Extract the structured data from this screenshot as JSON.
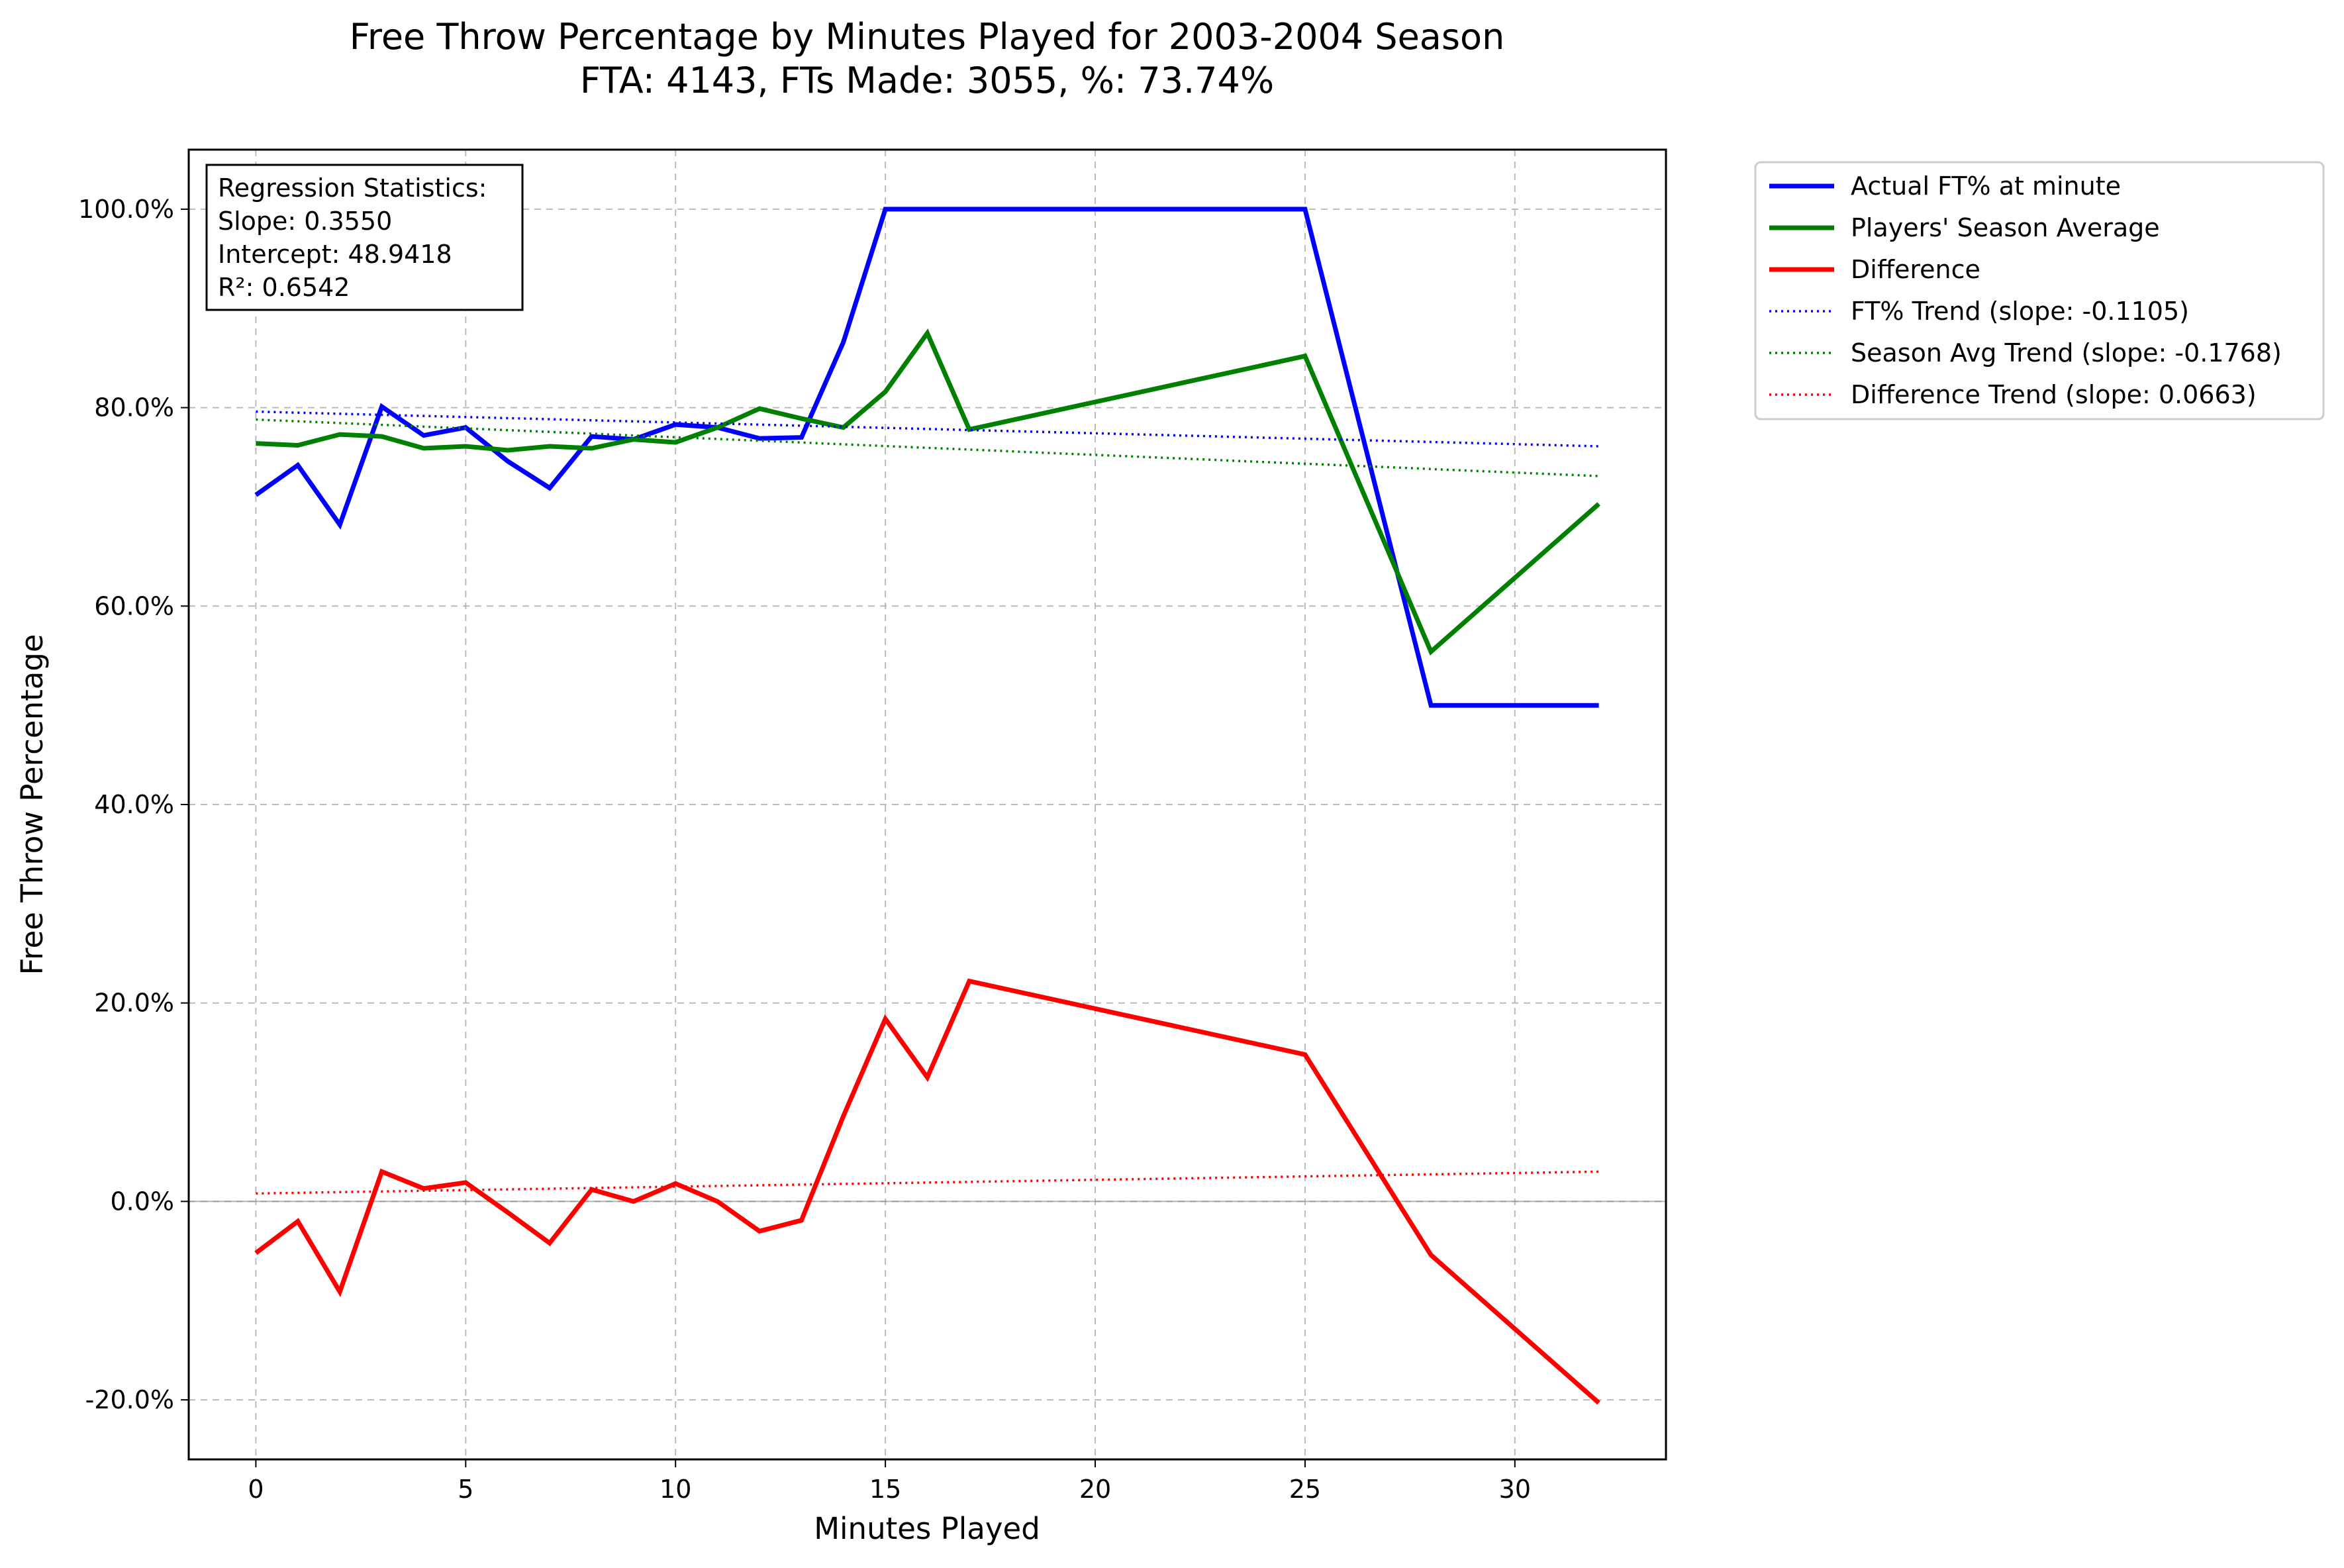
{
  "chart_data": {
    "type": "line",
    "title": "Free Throw Percentage by Minutes Played for 2003-2004 Season",
    "subtitle": "FTA: 4143, FTs Made: 3055, %: 73.74%",
    "xlabel": "Minutes Played",
    "ylabel": "Free Throw Percentage",
    "xlim": [
      -1.6,
      33.6
    ],
    "ylim": [
      -26,
      106
    ],
    "xticks": [
      0,
      5,
      10,
      15,
      20,
      25,
      30
    ],
    "xtick_labels": [
      "0",
      "5",
      "10",
      "15",
      "20",
      "25",
      "30"
    ],
    "yticks": [
      -20,
      0,
      20,
      40,
      60,
      80,
      100
    ],
    "ytick_labels": [
      "-20.0%",
      "0.0%",
      "20.0%",
      "40.0%",
      "60.0%",
      "80.0%",
      "100.0%"
    ],
    "grid": true,
    "legend_position": "outside upper right",
    "series": [
      {
        "name": "Actual FT% at minute",
        "color": "#0000ff",
        "style": "solid",
        "x": [
          0,
          1,
          2,
          3,
          4,
          5,
          6,
          7,
          8,
          9,
          10,
          11,
          12,
          13,
          14,
          15,
          16,
          17,
          25,
          28,
          32
        ],
        "y": [
          71.2,
          74.2,
          68.2,
          80.1,
          77.2,
          78.0,
          74.6,
          71.9,
          77.1,
          76.8,
          78.3,
          78.0,
          76.9,
          77.0,
          86.6,
          100.0,
          100.0,
          100.0,
          100.0,
          50.0,
          50.0
        ]
      },
      {
        "name": "Players' Season Average",
        "color": "#008000",
        "style": "solid",
        "x": [
          0,
          1,
          2,
          3,
          4,
          5,
          6,
          7,
          8,
          9,
          10,
          11,
          12,
          13,
          14,
          15,
          16,
          17,
          25,
          28,
          32
        ],
        "y": [
          76.4,
          76.2,
          77.3,
          77.1,
          75.9,
          76.1,
          75.7,
          76.1,
          75.9,
          76.8,
          76.5,
          78.0,
          79.9,
          78.9,
          78.0,
          81.6,
          87.5,
          77.8,
          85.2,
          55.4,
          70.3
        ]
      },
      {
        "name": "Difference",
        "color": "#ff0000",
        "style": "solid",
        "x": [
          0,
          1,
          2,
          3,
          4,
          5,
          6,
          7,
          8,
          9,
          10,
          11,
          12,
          13,
          14,
          15,
          16,
          17,
          25,
          28,
          32
        ],
        "y": [
          -5.2,
          -2.0,
          -9.1,
          3.0,
          1.3,
          1.9,
          -1.1,
          -4.2,
          1.2,
          0.0,
          1.8,
          0.0,
          -3.0,
          -1.9,
          8.6,
          18.4,
          12.5,
          22.2,
          14.8,
          -5.4,
          -20.3
        ]
      },
      {
        "name": "FT% Trend (slope: -0.1105)",
        "color": "#0000ff",
        "style": "dotted",
        "x": [
          0,
          32
        ],
        "y": [
          79.6,
          76.1
        ]
      },
      {
        "name": "Season Avg Trend (slope: -0.1768)",
        "color": "#008000",
        "style": "dotted",
        "x": [
          0,
          32
        ],
        "y": [
          78.8,
          73.1
        ]
      },
      {
        "name": "Difference Trend (slope: 0.0663)",
        "color": "#ff0000",
        "style": "dotted",
        "x": [
          0,
          32
        ],
        "y": [
          0.8,
          3.0
        ]
      }
    ],
    "annotation": {
      "lines": [
        "Regression Statistics:",
        "Slope: 0.3550",
        "Intercept: 48.9418",
        "R²: 0.6542"
      ]
    }
  }
}
